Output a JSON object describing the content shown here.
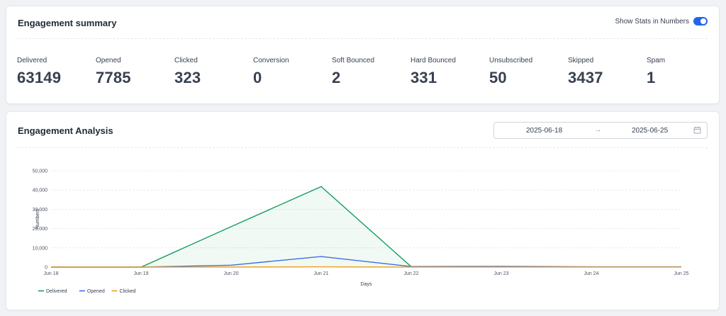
{
  "summary": {
    "title": "Engagement summary",
    "toggle_label": "Show Stats in Numbers",
    "toggle_on": true,
    "stats": [
      {
        "label": "Delivered",
        "value": "63149"
      },
      {
        "label": "Opened",
        "value": "7785"
      },
      {
        "label": "Clicked",
        "value": "323"
      },
      {
        "label": "Conversion",
        "value": "0"
      },
      {
        "label": "Soft Bounced",
        "value": "2"
      },
      {
        "label": "Hard Bounced",
        "value": "331"
      },
      {
        "label": "Unsubscribed",
        "value": "50"
      },
      {
        "label": "Skipped",
        "value": "3437"
      },
      {
        "label": "Spam",
        "value": "1"
      }
    ]
  },
  "analysis": {
    "title": "Engagement Analysis",
    "date_start": "2025-06-18",
    "date_end": "2025-06-25",
    "arrow_icon": "arrow-right-icon",
    "calendar_icon": "calendar-icon"
  },
  "colors": {
    "accent": "#2563eb",
    "delivered": "#16a05d",
    "opened": "#3b6fe0",
    "clicked": "#f0a020"
  },
  "chart_data": {
    "type": "line",
    "xlabel": "Days",
    "ylabel": "Numbers",
    "categories": [
      "Jun 18",
      "Jun 19",
      "Jun 20",
      "Jun 21",
      "Jun 22",
      "Jun 23",
      "Jun 24",
      "Jun 25"
    ],
    "y_ticks": [
      "0",
      "10,000",
      "20,000",
      "30,000",
      "40,000",
      "50,000"
    ],
    "ylim": [
      0,
      50000
    ],
    "grid": true,
    "legend_position": "bottom-left",
    "series": [
      {
        "name": "Delivered",
        "values": [
          0,
          0,
          21000,
          41800,
          200,
          150,
          100,
          80
        ],
        "area": true
      },
      {
        "name": "Opened",
        "values": [
          0,
          0,
          1000,
          5500,
          300,
          400,
          150,
          150
        ]
      },
      {
        "name": "Clicked",
        "values": [
          0,
          0,
          50,
          150,
          20,
          20,
          10,
          10
        ]
      }
    ]
  }
}
